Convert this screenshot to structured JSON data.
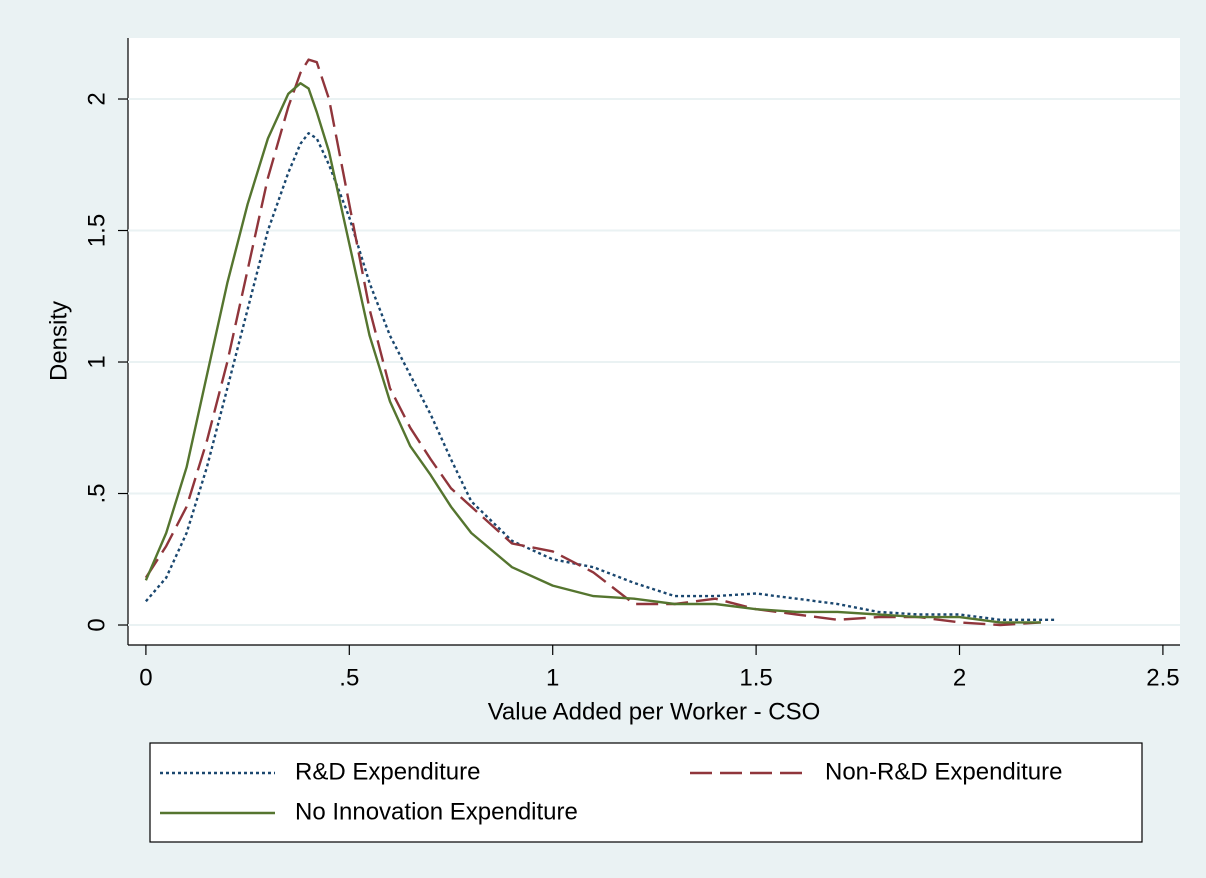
{
  "chart_data": {
    "type": "line",
    "xlabel": "Value Added per Worker - CSO",
    "ylabel": "Density",
    "x": [
      0,
      0.05,
      0.1,
      0.15,
      0.2,
      0.25,
      0.3,
      0.35,
      0.38,
      0.4,
      0.42,
      0.45,
      0.5,
      0.55,
      0.6,
      0.65,
      0.7,
      0.75,
      0.8,
      0.9,
      1.0,
      1.1,
      1.2,
      1.3,
      1.4,
      1.5,
      1.6,
      1.7,
      1.8,
      1.9,
      2.0,
      2.1,
      2.2,
      2.24
    ],
    "series": [
      {
        "name": "R&D Expenditure",
        "color": "#1a476f",
        "dash": "3,3",
        "values": [
          0.09,
          0.18,
          0.35,
          0.6,
          0.9,
          1.2,
          1.5,
          1.72,
          1.83,
          1.87,
          1.85,
          1.75,
          1.55,
          1.3,
          1.1,
          0.95,
          0.8,
          0.63,
          0.47,
          0.32,
          0.25,
          0.22,
          0.16,
          0.11,
          0.11,
          0.12,
          0.1,
          0.08,
          0.05,
          0.04,
          0.04,
          0.02,
          0.02,
          0.02
        ]
      },
      {
        "name": "Non-R&D Expenditure",
        "color": "#90353b",
        "dash": "22,8",
        "values": [
          0.18,
          0.3,
          0.45,
          0.7,
          1.0,
          1.35,
          1.7,
          1.97,
          2.1,
          2.15,
          2.14,
          2.0,
          1.6,
          1.2,
          0.9,
          0.75,
          0.63,
          0.52,
          0.45,
          0.31,
          0.28,
          0.2,
          0.08,
          0.08,
          0.1,
          0.06,
          0.04,
          0.02,
          0.03,
          0.03,
          0.01,
          0,
          0.01,
          null
        ]
      },
      {
        "name": "No Innovation Expenditure",
        "color": "#55752f",
        "dash": "none",
        "values": [
          0.17,
          0.35,
          0.6,
          0.95,
          1.3,
          1.6,
          1.85,
          2.02,
          2.06,
          2.04,
          1.95,
          1.8,
          1.45,
          1.1,
          0.85,
          0.68,
          0.57,
          0.45,
          0.35,
          0.22,
          0.15,
          0.11,
          0.1,
          0.08,
          0.08,
          0.06,
          0.05,
          0.05,
          0.04,
          0.03,
          0.03,
          0.01,
          0.01,
          null
        ]
      }
    ],
    "xlim": [
      -0.044,
      2.542
    ],
    "ylim": [
      -0.076,
      2.232
    ],
    "xticks": [
      0,
      {
        "value": 0.5,
        "label": ".5"
      },
      1,
      1.5,
      2,
      2.5
    ],
    "yticks": [
      0,
      {
        "value": 0.5,
        "label": ".5"
      },
      1,
      1.5,
      2
    ],
    "grid": true
  }
}
